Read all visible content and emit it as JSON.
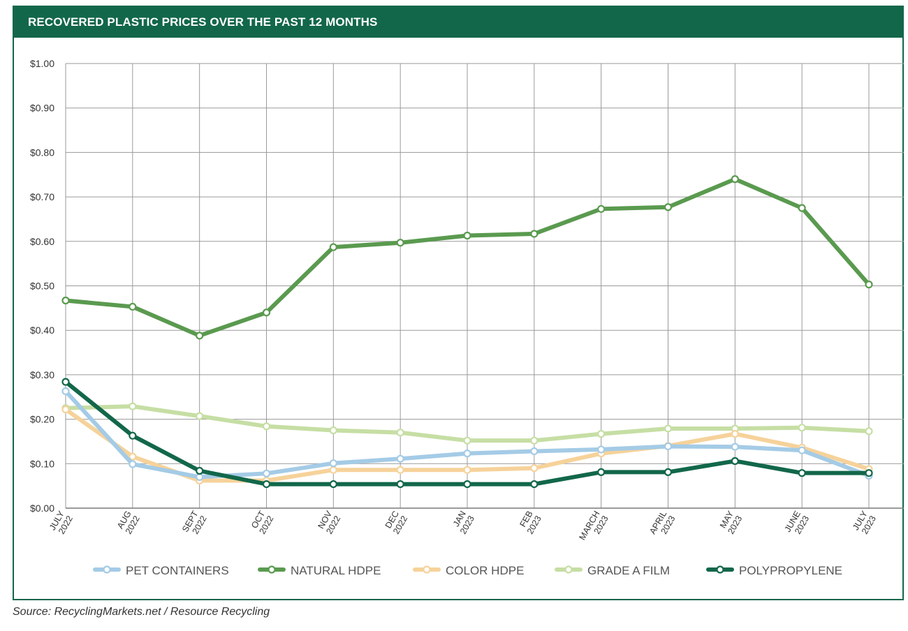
{
  "title": "RECOVERED PLASTIC PRICES OVER THE PAST 12 MONTHS",
  "source": "Source: RecyclingMarkets.net / Resource Recycling",
  "colors": {
    "header": "#12674a",
    "grid": "#9a9a9a",
    "axis_text": "#333333"
  },
  "chart_data": {
    "type": "line",
    "title": "RECOVERED PLASTIC PRICES OVER THE PAST 12 MONTHS",
    "xlabel": "",
    "ylabel": "",
    "ylim": [
      0,
      1
    ],
    "grid": true,
    "legend_position": "bottom",
    "y_ticks": [
      "$0.00",
      "$0.10",
      "$0.20",
      "$0.30",
      "$0.40",
      "$0.50",
      "$0.60",
      "$0.70",
      "$0.80",
      "$0.90",
      "$1.00"
    ],
    "categories": [
      [
        "JULY",
        "2022"
      ],
      [
        "AUG",
        "2022"
      ],
      [
        "SEPT",
        "2022"
      ],
      [
        "OCT",
        "2022"
      ],
      [
        "NOV",
        "2022"
      ],
      [
        "DEC",
        "2022"
      ],
      [
        "JAN",
        "2023"
      ],
      [
        "FEB",
        "2023"
      ],
      [
        "MARCH",
        "2023"
      ],
      [
        "APRIL",
        "2023"
      ],
      [
        "MAY",
        "2023"
      ],
      [
        "JUNE",
        "2023"
      ],
      [
        "JULY",
        "2023"
      ]
    ],
    "series": [
      {
        "name": "NATURAL HDPE",
        "color": "#5a9a4f",
        "values": [
          0.467,
          0.453,
          0.388,
          0.44,
          0.587,
          0.597,
          0.613,
          0.617,
          0.673,
          0.677,
          0.74,
          0.675,
          0.503
        ]
      },
      {
        "name": "GRADE A FILM",
        "color": "#c6dea4",
        "values": [
          0.225,
          0.229,
          0.207,
          0.184,
          0.175,
          0.17,
          0.152,
          0.152,
          0.167,
          0.179,
          0.179,
          0.181,
          0.173
        ]
      },
      {
        "name": "COLOR HDPE",
        "color": "#f6d29a",
        "values": [
          0.222,
          0.116,
          0.062,
          0.062,
          0.086,
          0.086,
          0.086,
          0.09,
          0.123,
          0.14,
          0.167,
          0.136,
          0.088
        ]
      },
      {
        "name": "PET CONTAINERS",
        "color": "#a4cbe6",
        "values": [
          0.263,
          0.099,
          0.07,
          0.078,
          0.101,
          0.111,
          0.123,
          0.128,
          0.132,
          0.139,
          0.138,
          0.13,
          0.073
        ]
      },
      {
        "name": "POLYPROPYLENE",
        "color": "#12674a",
        "values": [
          0.284,
          0.163,
          0.084,
          0.054,
          0.054,
          0.054,
          0.054,
          0.054,
          0.081,
          0.081,
          0.106,
          0.079,
          0.079
        ]
      }
    ],
    "legend_order": [
      "PET CONTAINERS",
      "NATURAL HDPE",
      "COLOR HDPE",
      "GRADE A FILM",
      "POLYPROPYLENE"
    ]
  }
}
